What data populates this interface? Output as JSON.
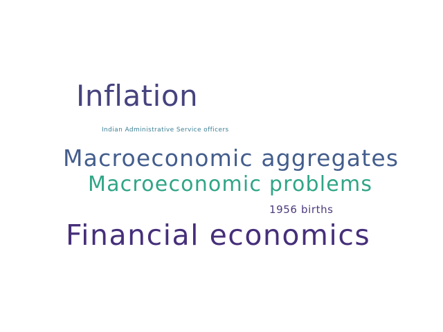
{
  "word_cloud": {
    "words": [
      {
        "key": "inflation",
        "text": "Inflation",
        "color": "#46437f"
      },
      {
        "key": "ias",
        "text": "Indian Administrative Service officers",
        "color": "#3b7f94"
      },
      {
        "key": "aggregates",
        "text": "Macroeconomic aggregates",
        "color": "#435d8c"
      },
      {
        "key": "problems",
        "text": "Macroeconomic problems",
        "color": "#30a587"
      },
      {
        "key": "births",
        "text": "1956 births",
        "color": "#4d3a7c"
      },
      {
        "key": "financial",
        "text": "Financial economics",
        "color": "#462f7a"
      }
    ]
  }
}
